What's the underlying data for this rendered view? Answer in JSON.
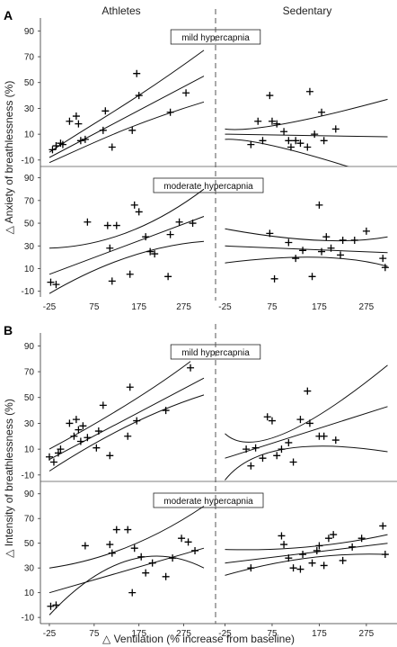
{
  "chart_data": [
    {
      "type": "scatter",
      "panel": "A",
      "ylabel": "△ Anxiety of breathlessness (%)",
      "col_titles": [
        "Athletes",
        "Sedentary"
      ],
      "yticks": [
        -10,
        10,
        30,
        50,
        70,
        90
      ],
      "subplots": [
        {
          "label": "mild hypercapnia",
          "ylim": [
            -15,
            100
          ],
          "athletes": {
            "points": [
              [
                -18,
                -2
              ],
              [
                -10,
                1
              ],
              [
                0,
                3
              ],
              [
                5,
                2
              ],
              [
                20,
                20
              ],
              [
                35,
                24
              ],
              [
                40,
                18
              ],
              [
                45,
                5
              ],
              [
                55,
                6
              ],
              [
                95,
                13
              ],
              [
                100,
                28
              ],
              [
                115,
                0
              ],
              [
                160,
                13
              ],
              [
                170,
                57
              ],
              [
                175,
                40
              ],
              [
                245,
                27
              ],
              [
                280,
                42
              ]
            ],
            "fit": [
              [
                -25,
                -8
              ],
              [
                320,
                55
              ]
            ],
            "ci_upper": [
              [
                -25,
                -4
              ],
              [
                60,
                16
              ],
              [
                150,
                32
              ],
              [
                320,
                75
              ]
            ],
            "ci_lower": [
              [
                -25,
                -12
              ],
              [
                60,
                1
              ],
              [
                150,
                17
              ],
              [
                320,
                35
              ]
            ]
          },
          "sedentary": {
            "points": [
              [
                30,
                2
              ],
              [
                45,
                20
              ],
              [
                55,
                5
              ],
              [
                70,
                40
              ],
              [
                75,
                20
              ],
              [
                85,
                18
              ],
              [
                100,
                12
              ],
              [
                110,
                5
              ],
              [
                115,
                0
              ],
              [
                125,
                5
              ],
              [
                135,
                3
              ],
              [
                150,
                0
              ],
              [
                155,
                43
              ],
              [
                165,
                10
              ],
              [
                180,
                27
              ],
              [
                185,
                5
              ],
              [
                210,
                14
              ]
            ],
            "fit": [
              [
                -25,
                10
              ],
              [
                320,
                8
              ]
            ],
            "ci_upper": [
              [
                -25,
                14
              ],
              [
                100,
                18
              ],
              [
                320,
                37
              ]
            ],
            "ci_lower": [
              [
                -25,
                6
              ],
              [
                100,
                -1
              ],
              [
                320,
                -25
              ]
            ]
          }
        },
        {
          "label": "moderate hypercapnia",
          "ylim": [
            -15,
            100
          ],
          "athletes": {
            "points": [
              [
                -22,
                -2
              ],
              [
                -10,
                -4
              ],
              [
                60,
                51
              ],
              [
                105,
                48
              ],
              [
                110,
                28
              ],
              [
                115,
                -1
              ],
              [
                125,
                48
              ],
              [
                155,
                5
              ],
              [
                165,
                66
              ],
              [
                175,
                60
              ],
              [
                190,
                38
              ],
              [
                200,
                25
              ],
              [
                210,
                23
              ],
              [
                240,
                3
              ],
              [
                245,
                40
              ],
              [
                265,
                51
              ],
              [
                295,
                50
              ]
            ],
            "fit": [
              [
                -25,
                5
              ],
              [
                320,
                56
              ]
            ],
            "ci_upper": [
              [
                -25,
                28
              ],
              [
                150,
                42
              ],
              [
                320,
                80
              ]
            ],
            "ci_lower": [
              [
                -25,
                -12
              ],
              [
                150,
                20
              ],
              [
                320,
                34
              ]
            ]
          },
          "sedentary": {
            "points": [
              [
                70,
                41
              ],
              [
                80,
                1
              ],
              [
                110,
                33
              ],
              [
                125,
                19
              ],
              [
                140,
                26
              ],
              [
                160,
                3
              ],
              [
                175,
                66
              ],
              [
                180,
                25
              ],
              [
                190,
                38
              ],
              [
                200,
                28
              ],
              [
                220,
                22
              ],
              [
                225,
                35
              ],
              [
                250,
                35
              ],
              [
                275,
                43
              ],
              [
                310,
                19
              ],
              [
                315,
                11
              ]
            ],
            "fit": [
              [
                -25,
                30
              ],
              [
                320,
                24
              ]
            ],
            "ci_upper": [
              [
                -25,
                45
              ],
              [
                170,
                35
              ],
              [
                320,
                38
              ]
            ],
            "ci_lower": [
              [
                -25,
                15
              ],
              [
                170,
                20
              ],
              [
                320,
                12
              ]
            ]
          }
        }
      ]
    },
    {
      "type": "scatter",
      "panel": "B",
      "ylabel": "△ Intensity of breathlessness (%)",
      "xlabel": "△ Ventilation (% increase from baseline)",
      "col_titles": [],
      "yticks": [
        -10,
        10,
        30,
        50,
        70,
        90
      ],
      "xticks": [
        -25,
        75,
        175,
        275
      ],
      "subplots": [
        {
          "label": "mild hypercapnia",
          "ylim": [
            -15,
            100
          ],
          "athletes": {
            "points": [
              [
                -25,
                4
              ],
              [
                -15,
                0
              ],
              [
                -5,
                7
              ],
              [
                0,
                10
              ],
              [
                20,
                30
              ],
              [
                30,
                20
              ],
              [
                35,
                33
              ],
              [
                40,
                25
              ],
              [
                45,
                16
              ],
              [
                50,
                28
              ],
              [
                60,
                19
              ],
              [
                80,
                11
              ],
              [
                85,
                24
              ],
              [
                95,
                44
              ],
              [
                110,
                5
              ],
              [
                150,
                20
              ],
              [
                155,
                58
              ],
              [
                170,
                32
              ],
              [
                235,
                40
              ],
              [
                290,
                73
              ]
            ],
            "fit": [
              [
                -25,
                2
              ],
              [
                320,
                65
              ]
            ],
            "ci_upper": [
              [
                -25,
                10
              ],
              [
                150,
                45
              ],
              [
                290,
                78
              ]
            ],
            "ci_lower": [
              [
                -25,
                -7
              ],
              [
                150,
                28
              ],
              [
                320,
                52
              ]
            ]
          },
          "sedentary": {
            "points": [
              [
                20,
                10
              ],
              [
                30,
                -3
              ],
              [
                40,
                11
              ],
              [
                55,
                3
              ],
              [
                65,
                35
              ],
              [
                75,
                32
              ],
              [
                85,
                5
              ],
              [
                95,
                10
              ],
              [
                110,
                15
              ],
              [
                120,
                0
              ],
              [
                135,
                33
              ],
              [
                150,
                55
              ],
              [
                155,
                30
              ],
              [
                175,
                20
              ],
              [
                185,
                20
              ],
              [
                210,
                17
              ]
            ],
            "fit": [
              [
                -25,
                3
              ],
              [
                320,
                43
              ]
            ],
            "ci_upper": [
              [
                -25,
                22
              ],
              [
                100,
                22
              ],
              [
                320,
                75
              ]
            ],
            "ci_lower": [
              [
                -25,
                -14
              ],
              [
                100,
                10
              ],
              [
                320,
                8
              ]
            ]
          }
        },
        {
          "label": "moderate hypercapnia",
          "ylim": [
            -15,
            100
          ],
          "athletes": {
            "points": [
              [
                -22,
                -1
              ],
              [
                -10,
                0
              ],
              [
                55,
                48
              ],
              [
                110,
                49
              ],
              [
                115,
                42
              ],
              [
                125,
                61
              ],
              [
                150,
                61
              ],
              [
                160,
                10
              ],
              [
                165,
                46
              ],
              [
                180,
                39
              ],
              [
                190,
                26
              ],
              [
                205,
                34
              ],
              [
                235,
                23
              ],
              [
                250,
                38
              ],
              [
                270,
                54
              ],
              [
                285,
                51
              ],
              [
                300,
                44
              ]
            ],
            "fit": [
              [
                -25,
                10
              ],
              [
                320,
                46
              ]
            ],
            "ci_upper": [
              [
                -25,
                30
              ],
              [
                150,
                47
              ],
              [
                320,
                80
              ]
            ],
            "ci_lower": [
              [
                -25,
                -8
              ],
              [
                150,
                36
              ],
              [
                320,
                30
              ]
            ]
          },
          "sedentary": {
            "points": [
              [
                30,
                30
              ],
              [
                95,
                56
              ],
              [
                100,
                49
              ],
              [
                110,
                38
              ],
              [
                120,
                30
              ],
              [
                135,
                29
              ],
              [
                140,
                41
              ],
              [
                160,
                34
              ],
              [
                170,
                44
              ],
              [
                175,
                48
              ],
              [
                185,
                32
              ],
              [
                195,
                54
              ],
              [
                205,
                57
              ],
              [
                225,
                36
              ],
              [
                245,
                47
              ],
              [
                265,
                54
              ],
              [
                310,
                64
              ],
              [
                315,
                41
              ]
            ],
            "fit": [
              [
                -25,
                34
              ],
              [
                320,
                50
              ]
            ],
            "ci_upper": [
              [
                -25,
                45
              ],
              [
                150,
                47
              ],
              [
                320,
                57
              ]
            ],
            "ci_lower": [
              [
                -25,
                24
              ],
              [
                150,
                38
              ],
              [
                320,
                41
              ]
            ]
          }
        }
      ]
    }
  ],
  "panel_letters": [
    "A",
    "B"
  ]
}
